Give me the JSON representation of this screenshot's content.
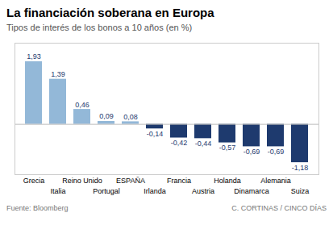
{
  "chart_data": {
    "type": "bar",
    "title": "La financiación soberana en Europa",
    "subtitle": "Tipos de interés de los bonos a 10 años (en %)",
    "source": "Fuente: Bloomberg",
    "credit": "C. CORTINAS / CINCO DÍAS",
    "categories": [
      "Grecia",
      "Italia",
      "Reino Unido",
      "Portugal",
      "ESPAÑA",
      "Irlanda",
      "Francia",
      "Austria",
      "Holanda",
      "Dinamarca",
      "Alemania",
      "Suiza"
    ],
    "values": [
      1.93,
      1.39,
      0.46,
      0.09,
      0.08,
      -0.14,
      -0.42,
      -0.44,
      -0.57,
      -0.69,
      -0.69,
      -1.18
    ],
    "value_labels": [
      "1,93",
      "1,39",
      "0,46",
      "0,09",
      "0,08",
      "-0,14",
      "-0,42",
      "-0,44",
      "-0,57",
      "-0,69",
      "-0,69",
      "-1,18"
    ],
    "colors": [
      "#93b8d8",
      "#93b8d8",
      "#93b8d8",
      "#93b8d8",
      "#93b8d8",
      "#1e3a6e",
      "#1e3a6e",
      "#1e3a6e",
      "#1e3a6e",
      "#1e3a6e",
      "#1e3a6e",
      "#1e3a6e"
    ],
    "ylim": [
      -1.55,
      2.5
    ],
    "grid": false,
    "data_labels": true,
    "tick_labels": "x"
  }
}
